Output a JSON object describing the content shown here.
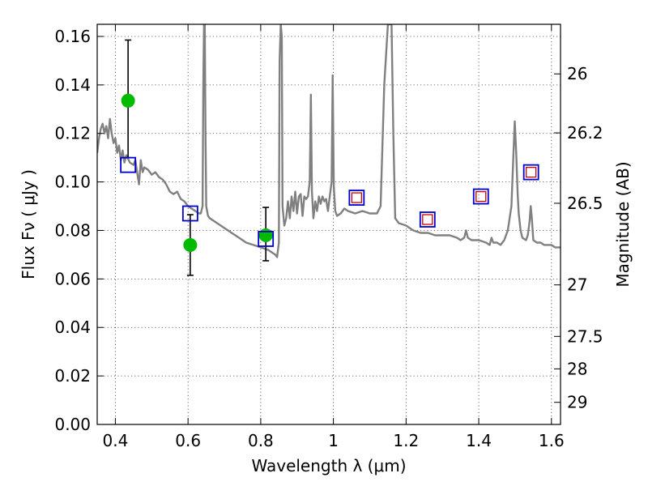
{
  "chart_data": {
    "type": "scatter",
    "xlabel": "Wavelength  λ (μm)",
    "ylabel": "Flux  Fν  ( μJy )",
    "y2label": "Magnitude (AB)",
    "xlim": [
      0.35,
      1.625
    ],
    "ylim": [
      0.0,
      0.165
    ],
    "grid": true,
    "x_ticks": [
      {
        "value": 0.4,
        "label": "0.4"
      },
      {
        "value": 0.6,
        "label": "0.6"
      },
      {
        "value": 0.8,
        "label": "0.8"
      },
      {
        "value": 1.0,
        "label": "1"
      },
      {
        "value": 1.2,
        "label": "1.2"
      },
      {
        "value": 1.4,
        "label": "1.4"
      },
      {
        "value": 1.6,
        "label": "1.6"
      }
    ],
    "y_ticks": [
      {
        "value": 0.0,
        "label": "0.00"
      },
      {
        "value": 0.02,
        "label": "0.02"
      },
      {
        "value": 0.04,
        "label": "0.04"
      },
      {
        "value": 0.06,
        "label": "0.06"
      },
      {
        "value": 0.08,
        "label": "0.08"
      },
      {
        "value": 0.1,
        "label": "0.10"
      },
      {
        "value": 0.12,
        "label": "0.12"
      },
      {
        "value": 0.14,
        "label": "0.14"
      },
      {
        "value": 0.16,
        "label": "0.16"
      }
    ],
    "y2_ticks": [
      {
        "value": 26,
        "label": "26"
      },
      {
        "value": 26.2,
        "label": "26.2"
      },
      {
        "value": 26.5,
        "label": "26.5"
      },
      {
        "value": 27,
        "label": "27"
      },
      {
        "value": 27.5,
        "label": "27.5"
      },
      {
        "value": 28,
        "label": "28"
      },
      {
        "value": 29,
        "label": "29"
      }
    ],
    "colors": {
      "sed": "#808080",
      "observed": "#00bb00",
      "model_box": "#0000cc",
      "model_inner": "#cc0000",
      "errorbar": "#000000"
    },
    "series": [
      {
        "kind": "sed_template",
        "points": [
          [
            0.35,
            0.112
          ],
          [
            0.355,
            0.118
          ],
          [
            0.36,
            0.122
          ],
          [
            0.365,
            0.124
          ],
          [
            0.37,
            0.12
          ],
          [
            0.375,
            0.123
          ],
          [
            0.38,
            0.118
          ],
          [
            0.385,
            0.126
          ],
          [
            0.39,
            0.12
          ],
          [
            0.395,
            0.116
          ],
          [
            0.4,
            0.118
          ],
          [
            0.405,
            0.112
          ],
          [
            0.41,
            0.115
          ],
          [
            0.415,
            0.109
          ],
          [
            0.42,
            0.113
          ],
          [
            0.425,
            0.108
          ],
          [
            0.43,
            0.111
          ],
          [
            0.44,
            0.108
          ],
          [
            0.45,
            0.107
          ],
          [
            0.455,
            0.109
          ],
          [
            0.46,
            0.104
          ],
          [
            0.465,
            0.099
          ],
          [
            0.47,
            0.109
          ],
          [
            0.475,
            0.104
          ],
          [
            0.48,
            0.106
          ],
          [
            0.49,
            0.105
          ],
          [
            0.5,
            0.103
          ],
          [
            0.51,
            0.104
          ],
          [
            0.52,
            0.102
          ],
          [
            0.53,
            0.101
          ],
          [
            0.54,
            0.099
          ],
          [
            0.55,
            0.096
          ],
          [
            0.56,
            0.095
          ],
          [
            0.57,
            0.096
          ],
          [
            0.58,
            0.093
          ],
          [
            0.59,
            0.092
          ],
          [
            0.6,
            0.09
          ],
          [
            0.61,
            0.089
          ],
          [
            0.62,
            0.088
          ],
          [
            0.63,
            0.087
          ],
          [
            0.635,
            0.087
          ],
          [
            0.64,
            0.09
          ],
          [
            0.642,
            0.14
          ],
          [
            0.644,
            0.165
          ],
          [
            0.646,
            0.165
          ],
          [
            0.648,
            0.12
          ],
          [
            0.65,
            0.09
          ],
          [
            0.655,
            0.086
          ],
          [
            0.66,
            0.085
          ],
          [
            0.67,
            0.084
          ],
          [
            0.68,
            0.083
          ],
          [
            0.69,
            0.082
          ],
          [
            0.7,
            0.081
          ],
          [
            0.72,
            0.079
          ],
          [
            0.74,
            0.077
          ],
          [
            0.76,
            0.075
          ],
          [
            0.78,
            0.074
          ],
          [
            0.8,
            0.073
          ],
          [
            0.82,
            0.072
          ],
          [
            0.83,
            0.071
          ],
          [
            0.84,
            0.07
          ],
          [
            0.845,
            0.069
          ],
          [
            0.85,
            0.075
          ],
          [
            0.852,
            0.15
          ],
          [
            0.855,
            0.165
          ],
          [
            0.858,
            0.16
          ],
          [
            0.86,
            0.09
          ],
          [
            0.865,
            0.082
          ],
          [
            0.87,
            0.085
          ],
          [
            0.875,
            0.092
          ],
          [
            0.88,
            0.085
          ],
          [
            0.885,
            0.094
          ],
          [
            0.89,
            0.088
          ],
          [
            0.895,
            0.096
          ],
          [
            0.9,
            0.087
          ],
          [
            0.905,
            0.094
          ],
          [
            0.91,
            0.095
          ],
          [
            0.915,
            0.086
          ],
          [
            0.92,
            0.094
          ],
          [
            0.925,
            0.093
          ],
          [
            0.93,
            0.094
          ],
          [
            0.935,
            0.1
          ],
          [
            0.938,
            0.136
          ],
          [
            0.941,
            0.096
          ],
          [
            0.945,
            0.085
          ],
          [
            0.95,
            0.092
          ],
          [
            0.955,
            0.088
          ],
          [
            0.96,
            0.094
          ],
          [
            0.965,
            0.091
          ],
          [
            0.97,
            0.094
          ],
          [
            0.975,
            0.092
          ],
          [
            0.98,
            0.093
          ],
          [
            0.985,
            0.088
          ],
          [
            0.99,
            0.094
          ],
          [
            0.995,
            0.1
          ],
          [
            0.998,
            0.144
          ],
          [
            1.001,
            0.098
          ],
          [
            1.005,
            0.088
          ],
          [
            1.01,
            0.086
          ],
          [
            1.02,
            0.087
          ],
          [
            1.03,
            0.089
          ],
          [
            1.04,
            0.088
          ],
          [
            1.06,
            0.087
          ],
          [
            1.08,
            0.088
          ],
          [
            1.1,
            0.087
          ],
          [
            1.12,
            0.087
          ],
          [
            1.13,
            0.09
          ],
          [
            1.14,
            0.14
          ],
          [
            1.15,
            0.165
          ],
          [
            1.16,
            0.165
          ],
          [
            1.165,
            0.12
          ],
          [
            1.17,
            0.085
          ],
          [
            1.18,
            0.083
          ],
          [
            1.2,
            0.082
          ],
          [
            1.22,
            0.08
          ],
          [
            1.24,
            0.079
          ],
          [
            1.26,
            0.079
          ],
          [
            1.28,
            0.078
          ],
          [
            1.3,
            0.078
          ],
          [
            1.32,
            0.078
          ],
          [
            1.34,
            0.077
          ],
          [
            1.35,
            0.076
          ],
          [
            1.36,
            0.077
          ],
          [
            1.365,
            0.08
          ],
          [
            1.37,
            0.077
          ],
          [
            1.38,
            0.076
          ],
          [
            1.4,
            0.076
          ],
          [
            1.42,
            0.075
          ],
          [
            1.43,
            0.074
          ],
          [
            1.435,
            0.077
          ],
          [
            1.44,
            0.075
          ],
          [
            1.45,
            0.075
          ],
          [
            1.46,
            0.074
          ],
          [
            1.47,
            0.076
          ],
          [
            1.48,
            0.08
          ],
          [
            1.49,
            0.09
          ],
          [
            1.495,
            0.11
          ],
          [
            1.499,
            0.125
          ],
          [
            1.503,
            0.112
          ],
          [
            1.507,
            0.095
          ],
          [
            1.51,
            0.087
          ],
          [
            1.515,
            0.08
          ],
          [
            1.52,
            0.077
          ],
          [
            1.53,
            0.076
          ],
          [
            1.535,
            0.078
          ],
          [
            1.54,
            0.084
          ],
          [
            1.543,
            0.09
          ],
          [
            1.546,
            0.085
          ],
          [
            1.55,
            0.076
          ],
          [
            1.56,
            0.075
          ],
          [
            1.57,
            0.075
          ],
          [
            1.58,
            0.074
          ],
          [
            1.59,
            0.074
          ],
          [
            1.6,
            0.074
          ],
          [
            1.61,
            0.073
          ],
          [
            1.625,
            0.073
          ]
        ]
      },
      {
        "kind": "observed_with_errors",
        "points": [
          {
            "x": 0.435,
            "y": 0.1335,
            "yerr_low": 0.11,
            "yerr_high": 0.1585
          },
          {
            "x": 0.606,
            "y": 0.074,
            "yerr_low": 0.0615,
            "yerr_high": 0.0865
          },
          {
            "x": 0.814,
            "y": 0.078,
            "yerr_low": 0.0675,
            "yerr_high": 0.0895
          }
        ]
      },
      {
        "kind": "model_photometry",
        "points": [
          {
            "x": 0.435,
            "y": 0.107,
            "inner": false
          },
          {
            "x": 0.606,
            "y": 0.087,
            "inner": false
          },
          {
            "x": 0.814,
            "y": 0.0765,
            "inner": false
          },
          {
            "x": 1.064,
            "y": 0.0935,
            "inner": true
          },
          {
            "x": 1.259,
            "y": 0.0845,
            "inner": true
          },
          {
            "x": 1.406,
            "y": 0.094,
            "inner": true
          },
          {
            "x": 1.544,
            "y": 0.104,
            "inner": true
          }
        ]
      }
    ]
  }
}
